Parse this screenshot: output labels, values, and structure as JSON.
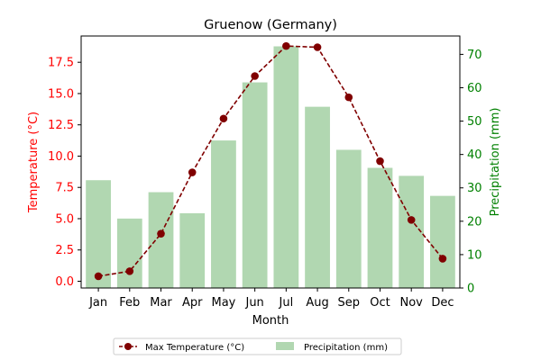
{
  "chart_data": {
    "type": "bar",
    "title": "Gruenow (Germany)",
    "xlabel": "Month",
    "ylabel_left": "Temperature (°C)",
    "ylabel_right": "Precipitation (mm)",
    "categories": [
      "Jan",
      "Feb",
      "Mar",
      "Apr",
      "May",
      "Jun",
      "Jul",
      "Aug",
      "Sep",
      "Oct",
      "Nov",
      "Dec"
    ],
    "series": [
      {
        "name": "Max Temperature (°C)",
        "type": "line",
        "axis": "left",
        "color": "#800000",
        "values": [
          0.4,
          0.8,
          3.8,
          8.7,
          13.0,
          16.4,
          18.8,
          18.7,
          14.7,
          9.6,
          4.9,
          1.8
        ]
      },
      {
        "name": "Precipitation (mm)",
        "type": "bar",
        "axis": "right",
        "color": "#b1d7b1",
        "values": [
          32.3,
          20.8,
          28.7,
          22.4,
          44.2,
          61.6,
          72.4,
          54.3,
          41.4,
          36.0,
          33.6,
          27.6
        ]
      }
    ],
    "ylim_left": [
      -0.54,
      19.6
    ],
    "ylim_right": [
      0,
      75.5
    ],
    "yticks_left": [
      "0.0",
      "2.5",
      "5.0",
      "7.5",
      "10.0",
      "12.5",
      "15.0",
      "17.5"
    ],
    "yticks_right": [
      "0",
      "10",
      "20",
      "30",
      "40",
      "50",
      "60",
      "70"
    ],
    "left_axis_color": "#ff0000",
    "right_axis_color": "#008000",
    "grid": false,
    "legend_position": "bottom-center"
  }
}
